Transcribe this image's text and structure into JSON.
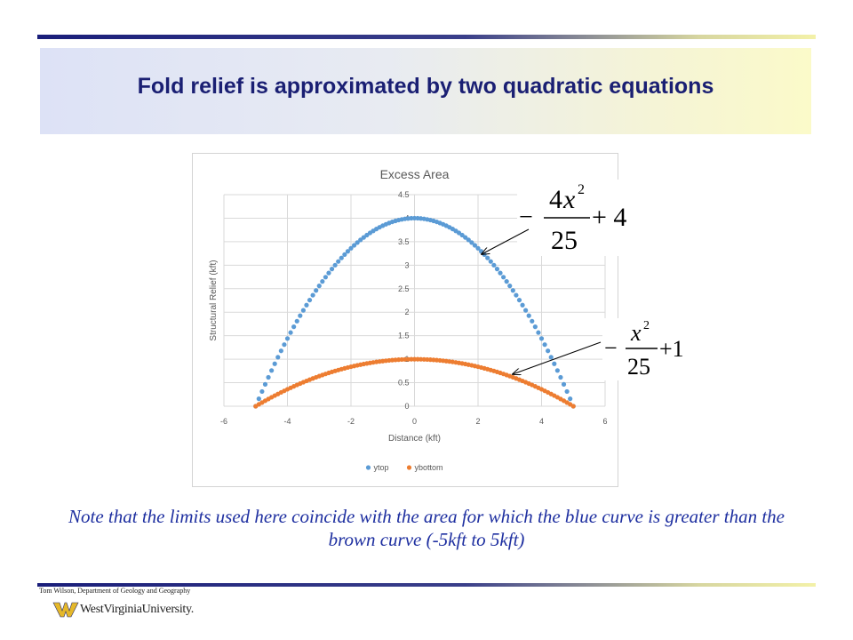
{
  "slide": {
    "title": "Fold relief is approximated by two quadratic equations",
    "note": "Note that the limits used here coincide with the area for which the blue curve is greater than the brown curve (-5kft to 5kft)",
    "footer": "Tom Wilson, Department of Geology and Geography",
    "logo_text": "WestVirginiaUniversity."
  },
  "equations": {
    "top": {
      "minus": "−",
      "num_coef": "4",
      "num_var": "x",
      "exp": "2",
      "den": "25",
      "const": "+ 4"
    },
    "bottom": {
      "minus": "−",
      "num_var": "x",
      "exp": "2",
      "den": "25",
      "const": "+1"
    }
  },
  "colors": {
    "ytop": "#5b9bd5",
    "ybottom": "#ed7d31",
    "title": "#1a1f73",
    "note": "#1e2fa0"
  },
  "chart_data": {
    "type": "scatter",
    "title": "Excess Area",
    "xlabel": "Distance (kft)",
    "ylabel": "Structural Relief (kft)",
    "xlim": [
      -6,
      6
    ],
    "ylim": [
      0,
      4.5
    ],
    "xticks": [
      -6,
      -4,
      -2,
      0,
      2,
      4,
      6
    ],
    "yticks": [
      0,
      0.5,
      1,
      1.5,
      2,
      2.5,
      3,
      3.5,
      4,
      4.5
    ],
    "grid": true,
    "legend_position": "bottom",
    "series": [
      {
        "name": "ytop",
        "formula": "y = -4x^2/25 + 4",
        "x_range": [
          -5,
          5
        ],
        "x_step": 0.1,
        "color": "#5b9bd5"
      },
      {
        "name": "ybottom",
        "formula": "y = -x^2/25 + 1",
        "x_range": [
          -5,
          5
        ],
        "x_step": 0.1,
        "color": "#ed7d31"
      }
    ]
  }
}
